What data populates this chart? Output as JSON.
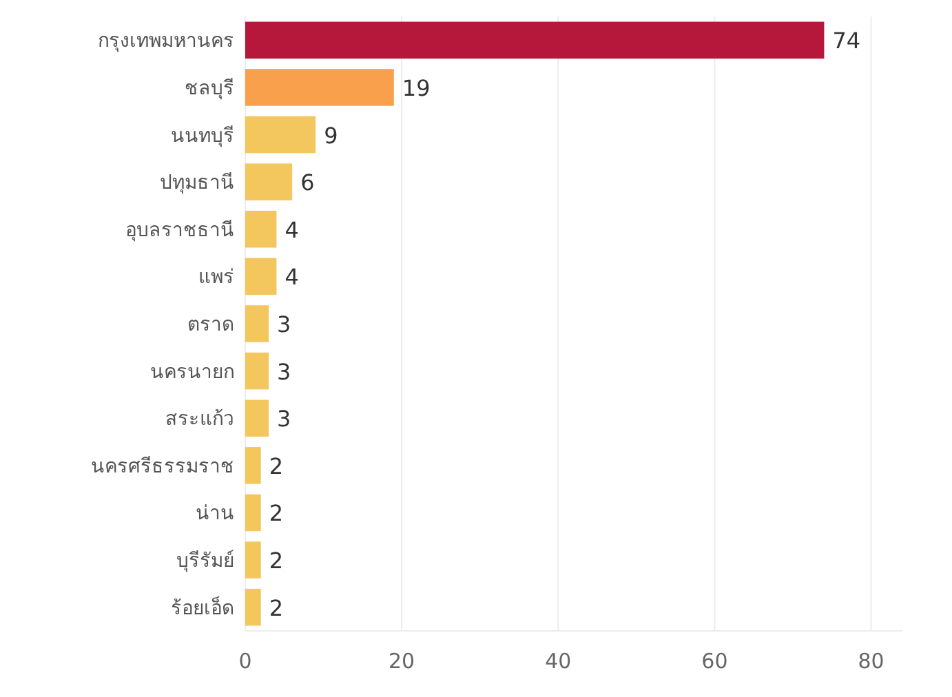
{
  "chart_data": {
    "type": "bar",
    "orientation": "horizontal",
    "categories": [
      "กรุงเทพมหานคร",
      "ชลบุรี",
      "นนทบุรี",
      "ปทุมธานี",
      "อุบลราชธานี",
      "แพร่",
      "ตราด",
      "นครนายก",
      "สระแก้ว",
      "นครศรีธรรมราช",
      "น่าน",
      "บุรีรัมย์",
      "ร้อยเอ็ด"
    ],
    "values": [
      74,
      19,
      9,
      6,
      4,
      4,
      3,
      3,
      3,
      2,
      2,
      2,
      2
    ],
    "colors": [
      "#b5183a",
      "#f9a04c",
      "#f4c65e",
      "#f4c65e",
      "#f4c65e",
      "#f4c65e",
      "#f4c65e",
      "#f4c65e",
      "#f4c65e",
      "#f4c65e",
      "#f4c65e",
      "#f4c65e",
      "#f4c65e"
    ],
    "xlim": [
      0,
      84
    ],
    "xticks": [
      0,
      20,
      40,
      60,
      80
    ],
    "grid": "x",
    "data_labels": true
  }
}
